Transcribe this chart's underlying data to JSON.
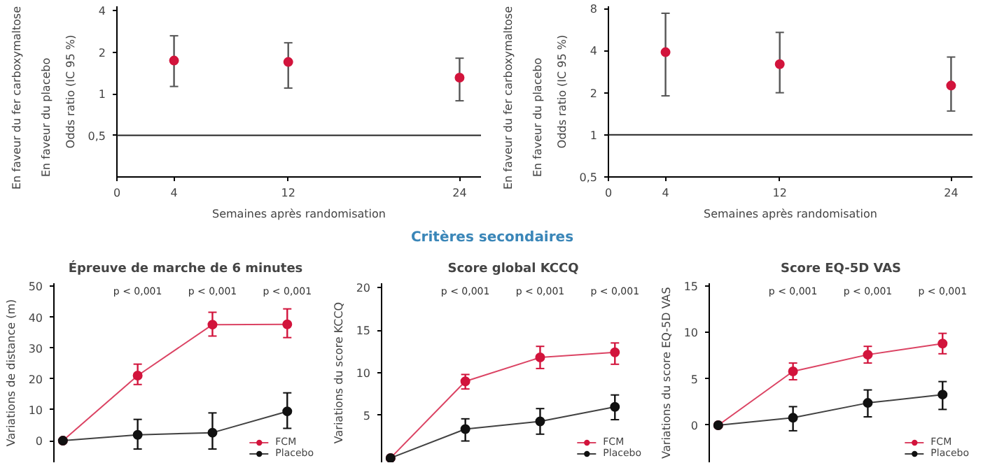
{
  "chart_data": [
    {
      "type": "scatter",
      "xlabel": "Semaines après randomisation",
      "ylabel": "Odds ratio (IC 95 %)",
      "log": true,
      "marker": "circle",
      "annotations": [
        "En faveur du placebo",
        "En faveur du fer carboxymaltose"
      ],
      "x": [
        4,
        12,
        24
      ],
      "xlim": [
        0,
        25.5
      ],
      "xticks": [
        0,
        4,
        12,
        24
      ],
      "ylim": [
        0.25,
        4.3
      ],
      "yticks": [
        {
          "value": 0.5,
          "label": "0,5"
        },
        1,
        2,
        4
      ],
      "series": [
        {
          "color": "#d2143c",
          "values": [
            1.74,
            1.7,
            1.31
          ],
          "errors": [
            [
              1.13,
              2.63
            ],
            [
              1.1,
              2.34
            ],
            [
              0.89,
              1.81
            ]
          ]
        }
      ],
      "ref_lines": [
        {
          "axis": "y",
          "value": 0.5,
          "color": "#222222"
        }
      ]
    },
    {
      "type": "scatter",
      "xlabel": "Semaines après randomisation",
      "ylabel": "Odds ratio (IC 95 %)",
      "log": true,
      "marker": "circle",
      "annotations": [
        "En faveur du placebo",
        "En faveur du fer carboxymaltose"
      ],
      "x": [
        4,
        12,
        24
      ],
      "xlim": [
        0,
        25.5
      ],
      "xticks": [
        0,
        4,
        12,
        24
      ],
      "ylim": [
        0.5,
        8.3
      ],
      "yticks": [
        {
          "value": 0.5,
          "label": "0,5"
        },
        1,
        2,
        4,
        8
      ],
      "series": [
        {
          "color": "#d2143c",
          "values": [
            3.9,
            3.2,
            2.25
          ],
          "errors": [
            [
              1.9,
              7.4
            ],
            [
              2.0,
              5.4
            ],
            [
              1.48,
              3.6
            ]
          ]
        }
      ],
      "ref_lines": [
        {
          "axis": "y",
          "value": 1,
          "color": "#222222"
        }
      ]
    },
    {
      "type": "other",
      "title": "Critères secondaires"
    },
    {
      "type": "line",
      "title": "Épreuve de marche de 6 minutes",
      "ylabel": "Variations de distance (m)",
      "marker": "circle",
      "legend": "bottom right",
      "tick_labels": "y",
      "categories": [
        null,
        null,
        null,
        null
      ],
      "ylim": [
        -7,
        51
      ],
      "yticks": [
        0,
        10,
        20,
        30,
        40,
        50
      ],
      "series": [
        {
          "name": "FCM",
          "color": "#d2143c",
          "values": [
            0,
            21.1,
            37.6,
            37.7
          ],
          "errors": [
            null,
            [
              18.2,
              24.8
            ],
            [
              33.9,
              41.6
            ],
            [
              33.4,
              42.7
            ]
          ]
        },
        {
          "name": "Placebo",
          "color": "#111111",
          "values": [
            0,
            1.9,
            2.6,
            9.5
          ],
          "errors": [
            null,
            [
              -2.7,
              6.9
            ],
            [
              -2.7,
              9.0
            ],
            [
              4.0,
              15.5
            ]
          ]
        }
      ],
      "annotations": [
        "p < 0,001",
        "p < 0,001",
        "p < 0,001"
      ]
    },
    {
      "type": "line",
      "title": "Score global KCCQ",
      "ylabel": "Variations du score KCCQ",
      "marker": "circle",
      "legend": "bottom right",
      "tick_labels": "y",
      "categories": [
        null,
        null,
        null,
        null
      ],
      "ylim": [
        -0.5,
        20.5
      ],
      "yticks": [
        5,
        10,
        15,
        20
      ],
      "series": [
        {
          "name": "FCM",
          "color": "#d2143c",
          "values": [
            0,
            9.0,
            11.8,
            12.4
          ],
          "errors": [
            null,
            [
              8.1,
              9.8
            ],
            [
              10.5,
              13.1
            ],
            [
              11.0,
              13.5
            ]
          ]
        },
        {
          "name": "Placebo",
          "color": "#111111",
          "values": [
            0,
            3.4,
            4.3,
            6.0
          ],
          "errors": [
            null,
            [
              2.0,
              4.6
            ],
            [
              2.8,
              5.8
            ],
            [
              4.5,
              7.4
            ]
          ]
        }
      ],
      "annotations": [
        "p < 0,001",
        "p < 0,001",
        "p < 0,001"
      ]
    },
    {
      "type": "line",
      "title": "Score EQ-5D VAS",
      "ylabel": "Variations du score EQ-5D VAS",
      "marker": "circle",
      "legend": "bottom right",
      "tick_labels": "y",
      "categories": [
        null,
        null,
        null,
        null
      ],
      "ylim": [
        -4,
        15.3
      ],
      "yticks": [
        0,
        5,
        10,
        15
      ],
      "series": [
        {
          "name": "FCM",
          "color": "#d2143c",
          "values": [
            0,
            5.8,
            7.6,
            8.8
          ],
          "errors": [
            null,
            [
              4.9,
              6.7
            ],
            [
              6.7,
              8.5
            ],
            [
              7.7,
              9.9
            ]
          ]
        },
        {
          "name": "Placebo",
          "color": "#111111",
          "values": [
            0,
            0.8,
            2.4,
            3.3
          ],
          "errors": [
            null,
            [
              -0.6,
              2.0
            ],
            [
              0.9,
              3.8
            ],
            [
              1.7,
              4.7
            ]
          ]
        }
      ],
      "annotations": [
        "p < 0,001",
        "p < 0,001",
        "p < 0,001"
      ]
    }
  ]
}
